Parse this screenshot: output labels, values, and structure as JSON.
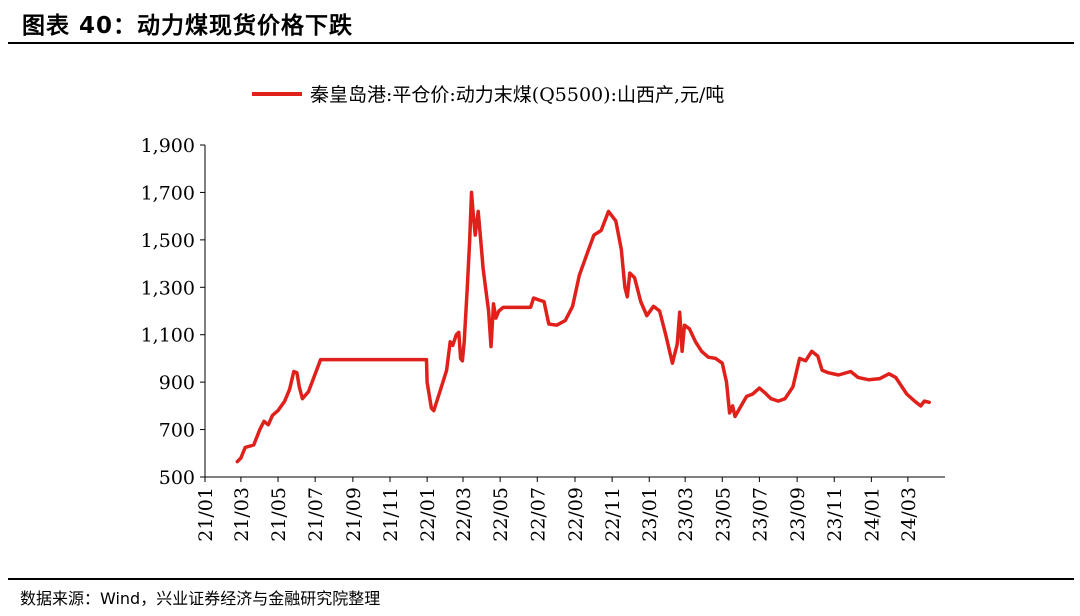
{
  "figure": {
    "title": "图表 40：动力煤现货价格下跌",
    "source": "数据来源：Wind，兴业证券经济与金融研究院整理"
  },
  "colors": {
    "series": "#e0211b",
    "axis": "#000000"
  },
  "chart_data": {
    "type": "line",
    "title": "",
    "xlabel": "",
    "ylabel": "",
    "legend_position": "top-center",
    "grid": false,
    "ylim": [
      500,
      1900
    ],
    "yticks": [
      500,
      700,
      900,
      1100,
      1300,
      1500,
      1700,
      1900
    ],
    "ytick_labels": [
      "500",
      "700",
      "900",
      "1,100",
      "1,300",
      "1,500",
      "1,700",
      "1,900"
    ],
    "xlim": [
      "2021-01-01",
      "2024-05-01"
    ],
    "xticks": [
      "2021-01-01",
      "2021-03-01",
      "2021-05-01",
      "2021-07-01",
      "2021-09-01",
      "2021-11-01",
      "2022-01-01",
      "2022-03-01",
      "2022-05-01",
      "2022-07-01",
      "2022-09-01",
      "2022-11-01",
      "2023-01-01",
      "2023-03-01",
      "2023-05-01",
      "2023-07-01",
      "2023-09-01",
      "2023-11-01",
      "2024-01-01",
      "2024-03-01"
    ],
    "xtick_labels": [
      "21/01",
      "21/03",
      "21/05",
      "21/07",
      "21/09",
      "21/11",
      "22/01",
      "22/03",
      "22/05",
      "22/07",
      "22/09",
      "22/11",
      "23/01",
      "23/03",
      "23/05",
      "23/07",
      "23/09",
      "23/11",
      "24/01",
      "24/03"
    ],
    "series": [
      {
        "name": "秦皇岛港:平仓价:动力末煤(Q5500):山西产,元/吨",
        "points": [
          [
            "2021-02-23",
            565
          ],
          [
            "2021-03-01",
            580
          ],
          [
            "2021-03-08",
            625
          ],
          [
            "2021-03-22",
            635
          ],
          [
            "2021-04-01",
            700
          ],
          [
            "2021-04-08",
            735
          ],
          [
            "2021-04-15",
            720
          ],
          [
            "2021-04-22",
            760
          ],
          [
            "2021-05-01",
            780
          ],
          [
            "2021-05-12",
            820
          ],
          [
            "2021-05-20",
            870
          ],
          [
            "2021-05-27",
            945
          ],
          [
            "2021-06-01",
            940
          ],
          [
            "2021-06-05",
            880
          ],
          [
            "2021-06-10",
            830
          ],
          [
            "2021-06-20",
            860
          ],
          [
            "2021-07-10",
            995
          ],
          [
            "2021-12-31",
            995
          ],
          [
            "2022-01-01",
            900
          ],
          [
            "2022-01-08",
            790
          ],
          [
            "2022-01-12",
            780
          ],
          [
            "2022-01-22",
            860
          ],
          [
            "2022-02-02",
            950
          ],
          [
            "2022-02-08",
            1070
          ],
          [
            "2022-02-12",
            1055
          ],
          [
            "2022-02-18",
            1100
          ],
          [
            "2022-02-22",
            1110
          ],
          [
            "2022-02-25",
            1000
          ],
          [
            "2022-02-28",
            990
          ],
          [
            "2022-03-03",
            1070
          ],
          [
            "2022-03-08",
            1300
          ],
          [
            "2022-03-12",
            1500
          ],
          [
            "2022-03-15",
            1700
          ],
          [
            "2022-03-18",
            1600
          ],
          [
            "2022-03-21",
            1520
          ],
          [
            "2022-03-26",
            1620
          ],
          [
            "2022-03-30",
            1500
          ],
          [
            "2022-04-03",
            1380
          ],
          [
            "2022-04-07",
            1300
          ],
          [
            "2022-04-12",
            1200
          ],
          [
            "2022-04-16",
            1050
          ],
          [
            "2022-04-20",
            1230
          ],
          [
            "2022-04-24",
            1170
          ],
          [
            "2022-04-29",
            1200
          ],
          [
            "2022-05-06",
            1215
          ],
          [
            "2022-06-20",
            1215
          ],
          [
            "2022-06-25",
            1255
          ],
          [
            "2022-07-05",
            1245
          ],
          [
            "2022-07-12",
            1240
          ],
          [
            "2022-07-20",
            1145
          ],
          [
            "2022-08-02",
            1140
          ],
          [
            "2022-08-16",
            1160
          ],
          [
            "2022-08-28",
            1220
          ],
          [
            "2022-09-08",
            1350
          ],
          [
            "2022-09-22",
            1450
          ],
          [
            "2022-10-02",
            1520
          ],
          [
            "2022-10-14",
            1540
          ],
          [
            "2022-10-26",
            1620
          ],
          [
            "2022-11-07",
            1580
          ],
          [
            "2022-11-16",
            1460
          ],
          [
            "2022-11-22",
            1300
          ],
          [
            "2022-11-26",
            1260
          ],
          [
            "2022-11-30",
            1360
          ],
          [
            "2022-12-08",
            1340
          ],
          [
            "2022-12-18",
            1240
          ],
          [
            "2022-12-28",
            1180
          ],
          [
            "2023-01-08",
            1220
          ],
          [
            "2023-01-18",
            1200
          ],
          [
            "2023-01-28",
            1100
          ],
          [
            "2023-02-08",
            980
          ],
          [
            "2023-02-16",
            1060
          ],
          [
            "2023-02-20",
            1195
          ],
          [
            "2023-02-24",
            1030
          ],
          [
            "2023-02-28",
            1140
          ],
          [
            "2023-03-08",
            1125
          ],
          [
            "2023-03-18",
            1070
          ],
          [
            "2023-03-28",
            1030
          ],
          [
            "2023-04-08",
            1005
          ],
          [
            "2023-04-20",
            1000
          ],
          [
            "2023-05-01",
            980
          ],
          [
            "2023-05-08",
            900
          ],
          [
            "2023-05-13",
            770
          ],
          [
            "2023-05-18",
            800
          ],
          [
            "2023-05-22",
            755
          ],
          [
            "2023-06-01",
            800
          ],
          [
            "2023-06-10",
            840
          ],
          [
            "2023-06-20",
            850
          ],
          [
            "2023-07-01",
            875
          ],
          [
            "2023-07-10",
            855
          ],
          [
            "2023-07-20",
            830
          ],
          [
            "2023-08-01",
            820
          ],
          [
            "2023-08-12",
            830
          ],
          [
            "2023-08-25",
            880
          ],
          [
            "2023-09-05",
            1000
          ],
          [
            "2023-09-15",
            990
          ],
          [
            "2023-09-25",
            1030
          ],
          [
            "2023-10-05",
            1010
          ],
          [
            "2023-10-12",
            950
          ],
          [
            "2023-10-22",
            940
          ],
          [
            "2023-11-08",
            930
          ],
          [
            "2023-11-28",
            945
          ],
          [
            "2023-12-10",
            920
          ],
          [
            "2023-12-28",
            910
          ],
          [
            "2024-01-15",
            915
          ],
          [
            "2024-01-30",
            935
          ],
          [
            "2024-02-10",
            920
          ],
          [
            "2024-02-28",
            850
          ],
          [
            "2024-03-12",
            820
          ],
          [
            "2024-03-22",
            800
          ],
          [
            "2024-03-28",
            820
          ],
          [
            "2024-04-05",
            815
          ]
        ]
      }
    ]
  }
}
